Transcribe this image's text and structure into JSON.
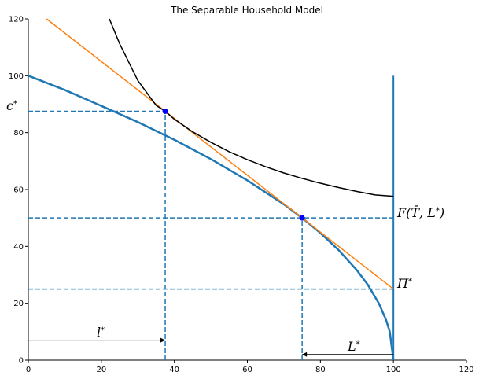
{
  "chart_data": {
    "type": "line",
    "title": "The Separable Household Model",
    "xlabel": "",
    "ylabel": "",
    "xlim": [
      0,
      120
    ],
    "ylim": [
      0,
      120
    ],
    "x_ticks": [
      "0",
      "20",
      "40",
      "60",
      "80",
      "100",
      "120"
    ],
    "y_ticks": [
      "0",
      "20",
      "40",
      "60",
      "80",
      "100",
      "120"
    ],
    "grid": false,
    "colors": {
      "production": "#1f77b4",
      "budget": "#ff7f0e",
      "indifference": "#000000",
      "guides": "#1f77b4",
      "points": "#0000ff",
      "vertical": "#1f77b4"
    },
    "series": [
      {
        "kind": "production-frontier",
        "color": "#1f77b4",
        "x": [
          0,
          10,
          20,
          30,
          40,
          50,
          60,
          70,
          75,
          80,
          85,
          90,
          93,
          96,
          98,
          99,
          100
        ],
        "y": [
          100,
          95,
          89.4,
          83.7,
          77.5,
          70.7,
          63.2,
          54.8,
          50,
          44.7,
          38.7,
          31.6,
          26.5,
          20,
          14.1,
          10,
          0
        ]
      },
      {
        "kind": "budget-line",
        "color": "#ff7f0e",
        "x": [
          5,
          100
        ],
        "y": [
          120,
          25
        ]
      },
      {
        "kind": "indifference-curve",
        "color": "#000000",
        "x": [
          22.2,
          25,
          30,
          35,
          37.5,
          40,
          45,
          50,
          55,
          60,
          65,
          70,
          75,
          80,
          85,
          90,
          95,
          100
        ],
        "y": [
          120,
          111.3,
          98.3,
          89.6,
          87.5,
          84.7,
          80.3,
          76.6,
          73.3,
          70.5,
          68.0,
          65.8,
          63.9,
          62.2,
          60.7,
          59.3,
          58.1,
          57.6
        ]
      }
    ],
    "points": [
      {
        "x": 37.5,
        "y": 87.5
      },
      {
        "x": 75,
        "y": 50
      }
    ],
    "vertical_line": {
      "x": 100,
      "y_from": 0,
      "y_to": 100
    },
    "guides": {
      "horizontal": [
        {
          "y": 87.5,
          "x_from": 0,
          "x_to": 37.5
        },
        {
          "y": 50,
          "x_from": 0,
          "x_to": 100
        },
        {
          "y": 25,
          "x_from": 0,
          "x_to": 100
        }
      ],
      "vertical": [
        {
          "x": 37.5,
          "y_from": 0,
          "y_to": 87.5
        },
        {
          "x": 75,
          "y_from": 0,
          "y_to": 50
        }
      ]
    },
    "arrows": [
      {
        "from": [
          0,
          7
        ],
        "to": [
          37.5,
          7
        ]
      },
      {
        "from": [
          100,
          2
        ],
        "to": [
          75,
          2
        ]
      }
    ],
    "annotations": {
      "c_star": "c*",
      "l_star": "l*",
      "L_star": "L*",
      "F_label": "F(T̄, L*)",
      "Pi_star": "Π*"
    }
  }
}
